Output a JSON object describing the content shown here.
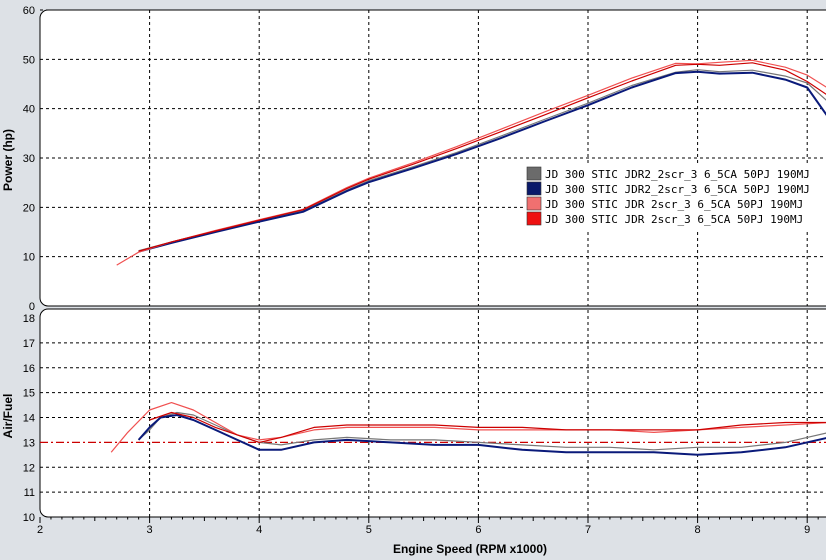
{
  "chart_data": [
    {
      "type": "line",
      "panel": "power",
      "ylabel": "Power (hp)",
      "ylim": [
        0,
        60
      ],
      "xlim": [
        2,
        9.2
      ],
      "grid": true,
      "yticks": [
        "0",
        "10",
        "20",
        "30",
        "40",
        "50",
        "60"
      ],
      "legend_position": "right",
      "series": [
        {
          "name": "JD 300 STIC JDR2_2scr_3 6_5CA 50PJ 190MJ",
          "color": "#777777",
          "swatch": "#6b6b6b",
          "x": [
            2.9,
            3.2,
            3.6,
            4.0,
            4.4,
            4.8,
            5.0,
            5.4,
            5.8,
            6.2,
            6.6,
            7.0,
            7.4,
            7.8,
            8.0,
            8.2,
            8.5,
            8.8,
            9.0,
            9.2
          ],
          "y": [
            11.2,
            13.0,
            15.2,
            17.3,
            19.3,
            23.5,
            25.4,
            28.2,
            31.1,
            34.4,
            37.8,
            41.1,
            44.7,
            47.4,
            47.9,
            47.5,
            47.8,
            46.6,
            45.2,
            41.2
          ]
        },
        {
          "name": "JD 300 STIC JDR2_2scr_3 6_5CA 50PJ 190MJ",
          "color": "#0a1a7a",
          "swatch": "#0a1a6a",
          "x": [
            2.9,
            3.2,
            3.6,
            4.0,
            4.4,
            4.8,
            5.0,
            5.4,
            5.8,
            6.2,
            6.6,
            7.0,
            7.4,
            7.8,
            8.0,
            8.2,
            8.5,
            8.8,
            9.0,
            9.2
          ],
          "y": [
            11.0,
            12.8,
            15.0,
            17.1,
            19.1,
            23.3,
            25.1,
            27.9,
            30.8,
            34.0,
            37.4,
            40.7,
            44.3,
            47.2,
            47.5,
            47.1,
            47.3,
            45.9,
            44.3,
            38.0
          ]
        },
        {
          "name": "JD 300 STIC JDR 2scr_3 6_5CA 50PJ 190MJ",
          "color": "#f05050",
          "swatch": "#f07070",
          "x": [
            2.7,
            2.9,
            3.2,
            3.6,
            4.0,
            4.4,
            4.8,
            5.0,
            5.4,
            5.8,
            6.2,
            6.6,
            7.0,
            7.4,
            7.8,
            8.0,
            8.2,
            8.5,
            8.8,
            9.0,
            9.2
          ],
          "y": [
            8.3,
            10.9,
            13.0,
            15.3,
            17.5,
            19.6,
            24.0,
            25.9,
            29.0,
            32.3,
            35.8,
            39.3,
            42.7,
            46.2,
            49.2,
            49.1,
            49.4,
            49.8,
            48.4,
            46.8,
            44.0
          ]
        },
        {
          "name": "JD 300 STIC JDR 2scr_3 6_5CA 50PJ 190MJ",
          "color": "#cc0000",
          "swatch": "#ee1111",
          "x": [
            2.9,
            3.2,
            3.6,
            4.0,
            4.4,
            4.8,
            5.0,
            5.4,
            5.8,
            6.2,
            6.6,
            7.0,
            7.4,
            7.8,
            8.0,
            8.2,
            8.5,
            8.8,
            9.0,
            9.2
          ],
          "y": [
            11.1,
            13.0,
            15.2,
            17.4,
            19.5,
            23.8,
            25.7,
            28.7,
            31.9,
            35.3,
            38.7,
            42.2,
            45.6,
            48.8,
            49.0,
            48.8,
            49.3,
            47.8,
            45.5,
            42.5
          ]
        }
      ]
    },
    {
      "type": "line",
      "panel": "afr",
      "ylabel": "Air/Fuel",
      "xlabel": "Engine Speed (RPM x1000)",
      "ylim": [
        10,
        18
      ],
      "xlim": [
        2,
        9.2
      ],
      "grid": true,
      "reference_line": 13,
      "reference_color": "#cc0000",
      "xticks": [
        "2",
        "3",
        "4",
        "5",
        "6",
        "7",
        "8",
        "9"
      ],
      "yticks": [
        "10",
        "11",
        "12",
        "13",
        "14",
        "15",
        "16",
        "17",
        "18"
      ],
      "series": [
        {
          "color": "#777777",
          "x": [
            2.9,
            3.0,
            3.1,
            3.25,
            3.4,
            3.6,
            3.8,
            4.0,
            4.2,
            4.5,
            4.8,
            5.2,
            5.6,
            6.0,
            6.4,
            6.8,
            7.2,
            7.6,
            8.0,
            8.4,
            8.8,
            9.2
          ],
          "y": [
            13.1,
            13.5,
            14.0,
            14.2,
            14.1,
            13.7,
            13.3,
            13.0,
            12.9,
            13.1,
            13.2,
            13.1,
            13.1,
            13.0,
            12.9,
            12.8,
            12.8,
            12.7,
            12.8,
            12.8,
            13.0,
            13.4
          ]
        },
        {
          "color": "#0a1a7a",
          "x": [
            2.9,
            3.0,
            3.1,
            3.25,
            3.4,
            3.6,
            3.8,
            4.0,
            4.2,
            4.5,
            4.8,
            5.2,
            5.6,
            6.0,
            6.4,
            6.8,
            7.2,
            7.6,
            8.0,
            8.4,
            8.8,
            9.2
          ],
          "y": [
            13.1,
            13.6,
            14.0,
            14.1,
            13.9,
            13.5,
            13.1,
            12.7,
            12.7,
            13.0,
            13.1,
            13.0,
            12.9,
            12.9,
            12.7,
            12.6,
            12.6,
            12.6,
            12.5,
            12.6,
            12.8,
            13.2
          ]
        },
        {
          "color": "#f05050",
          "x": [
            2.65,
            2.8,
            3.0,
            3.2,
            3.4,
            3.6,
            3.8,
            4.0,
            4.2,
            4.5,
            4.8,
            5.2,
            5.6,
            6.0,
            6.4,
            6.8,
            7.2,
            7.6,
            8.0,
            8.4,
            8.8,
            9.2
          ],
          "y": [
            12.6,
            13.4,
            14.3,
            14.6,
            14.3,
            13.8,
            13.3,
            13.1,
            13.2,
            13.5,
            13.6,
            13.6,
            13.6,
            13.5,
            13.5,
            13.5,
            13.5,
            13.4,
            13.5,
            13.6,
            13.7,
            13.8
          ]
        },
        {
          "color": "#cc0000",
          "x": [
            3.0,
            3.2,
            3.4,
            3.6,
            3.8,
            4.0,
            4.2,
            4.5,
            4.8,
            5.2,
            5.6,
            6.0,
            6.4,
            6.8,
            7.2,
            7.6,
            8.0,
            8.4,
            8.8,
            9.2
          ],
          "y": [
            13.9,
            14.2,
            14.0,
            13.6,
            13.3,
            13.0,
            13.2,
            13.6,
            13.7,
            13.7,
            13.7,
            13.6,
            13.6,
            13.5,
            13.5,
            13.5,
            13.5,
            13.7,
            13.8,
            13.8
          ]
        }
      ]
    }
  ]
}
